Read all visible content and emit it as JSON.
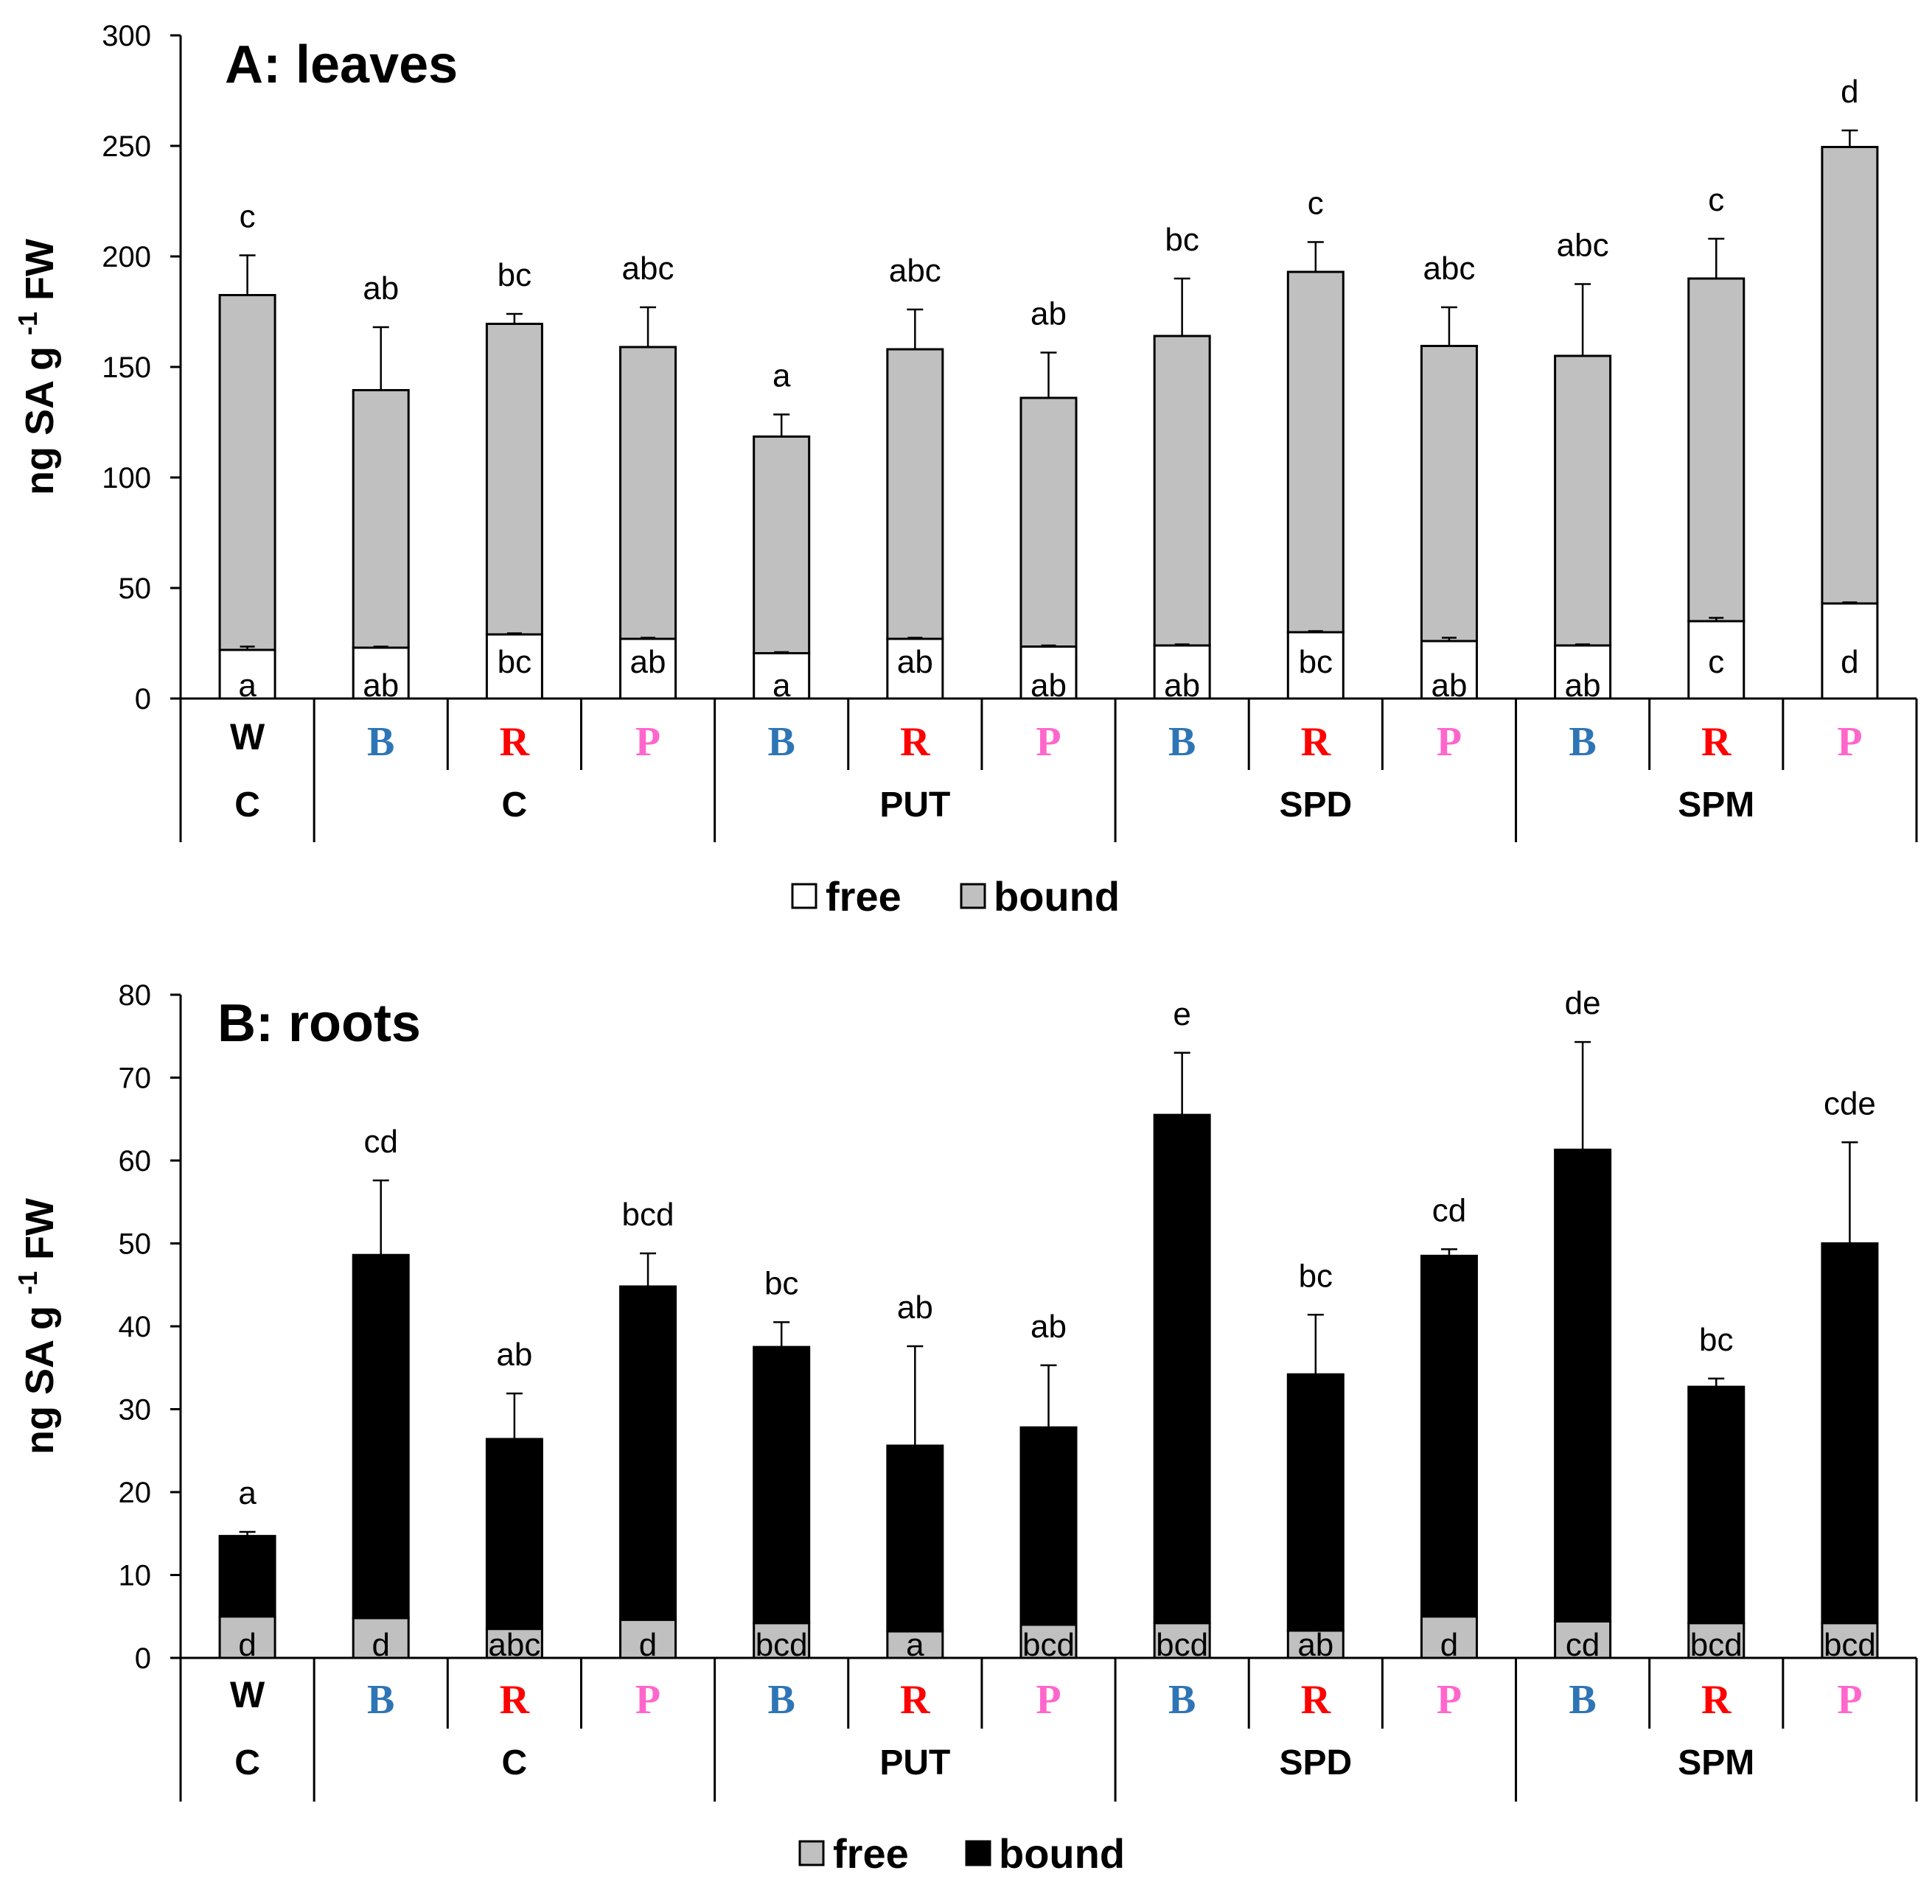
{
  "colors": {
    "B": "#2e75b6",
    "R": "#ff0000",
    "P": "#ff66cc",
    "W": "#000000",
    "axis": "#000000",
    "white": "#ffffff",
    "gray": "#c0c0c0",
    "black": "#000000"
  },
  "chart_data": [
    {
      "type": "bar",
      "stacked": true,
      "title": "A: leaves",
      "ylabel": "ng SA g -1 FW",
      "ylabel_parts": {
        "pre": "ng SA g",
        "sup": "-1",
        "post": " FW"
      },
      "ylim": [
        0,
        300
      ],
      "yticks": [
        0,
        50,
        100,
        150,
        200,
        250,
        300
      ],
      "categories": [
        "W",
        "B",
        "R",
        "P",
        "B",
        "R",
        "P",
        "B",
        "R",
        "P",
        "B",
        "R",
        "P"
      ],
      "groups": [
        {
          "label": "C",
          "start": 0,
          "end": 0
        },
        {
          "label": "C",
          "start": 1,
          "end": 3
        },
        {
          "label": "PUT",
          "start": 4,
          "end": 6
        },
        {
          "label": "SPD",
          "start": 7,
          "end": 9
        },
        {
          "label": "SPM",
          "start": 10,
          "end": 12
        }
      ],
      "series": [
        {
          "name": "free",
          "color": "#ffffff",
          "values": [
            22,
            23,
            29,
            27,
            20.5,
            27,
            23.5,
            24,
            30,
            26,
            24,
            35,
            43
          ],
          "errors": [
            1.5,
            0.5,
            0.5,
            0.5,
            0.5,
            0.5,
            0.5,
            0.5,
            0.5,
            1.5,
            0.5,
            1.5,
            0.5
          ],
          "labels": [
            "a",
            "ab",
            "bc",
            "ab",
            "a",
            "ab",
            "ab",
            "ab",
            "bc",
            "ab",
            "ab",
            "c",
            "d"
          ]
        },
        {
          "name": "bound",
          "color": "#c0c0c0",
          "values": [
            160.5,
            116.5,
            140.5,
            132,
            98,
            131,
            112.5,
            140,
            163,
            133.5,
            131,
            155,
            206.5
          ],
          "errors": [
            18,
            28.5,
            4.5,
            18,
            10,
            18,
            20.5,
            26,
            13.5,
            17.5,
            32.5,
            18,
            7.5
          ],
          "labels": [
            "c",
            "ab",
            "bc",
            "abc",
            "a",
            "abc",
            "ab",
            "bc",
            "c",
            "abc",
            "abc",
            "c",
            "d"
          ]
        }
      ]
    },
    {
      "type": "bar",
      "stacked": true,
      "title": "B: roots",
      "ylabel": "ng SA g -1 FW",
      "ylabel_parts": {
        "pre": "ng SA g",
        "sup": "-1",
        "post": " FW"
      },
      "ylim": [
        0,
        80
      ],
      "yticks": [
        0,
        10,
        20,
        30,
        40,
        50,
        60,
        70,
        80
      ],
      "categories": [
        "W",
        "B",
        "R",
        "P",
        "B",
        "R",
        "P",
        "B",
        "R",
        "P",
        "B",
        "R",
        "P"
      ],
      "groups": [
        {
          "label": "C",
          "start": 0,
          "end": 0
        },
        {
          "label": "C",
          "start": 1,
          "end": 3
        },
        {
          "label": "PUT",
          "start": 4,
          "end": 6
        },
        {
          "label": "SPD",
          "start": 7,
          "end": 9
        },
        {
          "label": "SPM",
          "start": 10,
          "end": 12
        }
      ],
      "series": [
        {
          "name": "free",
          "color": "#c0c0c0",
          "values": [
            5,
            4.8,
            3.5,
            4.6,
            4.2,
            3.2,
            4,
            4.2,
            3.3,
            5,
            4.4,
            4.2,
            4.2
          ],
          "errors": [
            0.8,
            0.8,
            0.3,
            0.6,
            0.7,
            0.6,
            0.8,
            0.6,
            0.4,
            0.6,
            0.4,
            0.8,
            0.7
          ],
          "labels": [
            "d",
            "d",
            "abc",
            "d",
            "bcd",
            "a",
            "bcd",
            "bcd",
            "ab",
            "d",
            "cd",
            "bcd",
            "bcd"
          ]
        },
        {
          "name": "bound",
          "color": "#000000",
          "values": [
            9.7,
            43.8,
            22.9,
            40.2,
            33.3,
            22.4,
            23.8,
            61.3,
            30.9,
            43.5,
            56.9,
            28.5,
            45.8
          ],
          "errors": [
            0.5,
            9,
            5.5,
            4,
            3,
            12,
            7.5,
            7.5,
            7.2,
            0.8,
            13,
            1,
            12.2
          ],
          "labels": [
            "a",
            "cd",
            "ab",
            "bcd",
            "bc",
            "ab",
            "ab",
            "e",
            "bc",
            "cd",
            "de",
            "bc",
            "cde"
          ]
        }
      ]
    }
  ]
}
